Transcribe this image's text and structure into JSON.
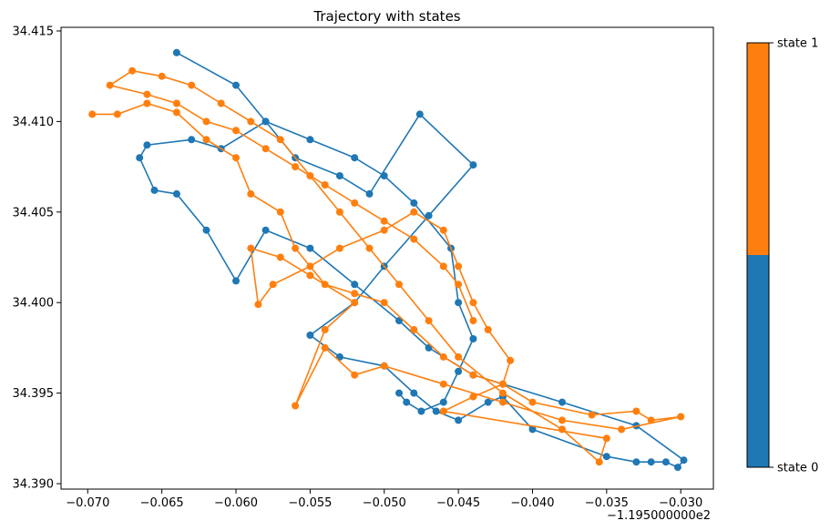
{
  "chart_data": {
    "type": "line",
    "title": "Trajectory with states",
    "xlabel": "",
    "ylabel": "",
    "x_offset_label": "−1.195000000e2",
    "xlim": [
      -0.0718,
      -0.0278
    ],
    "ylim": [
      34.3897,
      34.4152
    ],
    "x_ticks": [
      -0.07,
      -0.065,
      -0.06,
      -0.055,
      -0.05,
      -0.045,
      -0.04,
      -0.035,
      -0.03
    ],
    "x_tick_labels": [
      "−0.070",
      "−0.065",
      "−0.060",
      "−0.055",
      "−0.050",
      "−0.045",
      "−0.040",
      "−0.035",
      "−0.030"
    ],
    "y_ticks": [
      34.39,
      34.395,
      34.4,
      34.405,
      34.41,
      34.415
    ],
    "y_tick_labels": [
      "34.390",
      "34.395",
      "34.400",
      "34.405",
      "34.410",
      "34.415"
    ],
    "grid": false,
    "colorbar": {
      "labels": [
        "state 0",
        "state 1"
      ],
      "colors": [
        "#1f77b4",
        "#ff7f0e"
      ]
    },
    "series": [
      {
        "name": "state 0",
        "color": "#1f77b4",
        "points": [
          [
            -0.064,
            34.4138
          ],
          [
            -0.06,
            34.412
          ],
          [
            -0.058,
            34.41
          ],
          [
            -0.056,
            34.408
          ],
          [
            -0.053,
            34.407
          ],
          [
            -0.051,
            34.406
          ],
          [
            -0.0476,
            34.4104
          ],
          [
            -0.044,
            34.4076
          ],
          [
            -0.047,
            34.4048
          ],
          [
            -0.05,
            34.402
          ],
          [
            -0.052,
            34.4
          ],
          [
            -0.055,
            34.3982
          ],
          [
            -0.053,
            34.397
          ],
          [
            -0.05,
            34.3965
          ],
          [
            -0.048,
            34.395
          ],
          [
            -0.0465,
            34.394
          ],
          [
            -0.045,
            34.3935
          ],
          [
            -0.043,
            34.3945
          ],
          [
            -0.042,
            34.3948
          ],
          [
            -0.04,
            34.393
          ],
          [
            -0.035,
            34.3915
          ],
          [
            -0.033,
            34.3912
          ],
          [
            -0.032,
            34.3912
          ],
          [
            -0.031,
            34.3912
          ],
          [
            -0.0302,
            34.3909
          ],
          [
            -0.0298,
            34.3913
          ],
          [
            -0.033,
            34.3932
          ],
          [
            -0.038,
            34.3945
          ],
          [
            -0.044,
            34.396
          ],
          [
            -0.047,
            34.3975
          ],
          [
            -0.049,
            34.399
          ],
          [
            -0.052,
            34.401
          ],
          [
            -0.055,
            34.403
          ],
          [
            -0.058,
            34.404
          ],
          [
            -0.06,
            34.4012
          ],
          [
            -0.062,
            34.404
          ],
          [
            -0.064,
            34.406
          ],
          [
            -0.0655,
            34.4062
          ],
          [
            -0.0665,
            34.408
          ],
          [
            -0.066,
            34.4087
          ],
          [
            -0.063,
            34.409
          ],
          [
            -0.061,
            34.4085
          ],
          [
            -0.058,
            34.41
          ],
          [
            -0.055,
            34.409
          ],
          [
            -0.052,
            34.408
          ],
          [
            -0.05,
            34.407
          ],
          [
            -0.048,
            34.4055
          ],
          [
            -0.0455,
            34.403
          ],
          [
            -0.045,
            34.4
          ],
          [
            -0.044,
            34.398
          ],
          [
            -0.045,
            34.3962
          ],
          [
            -0.046,
            34.3945
          ],
          [
            -0.0475,
            34.394
          ],
          [
            -0.0485,
            34.3945
          ],
          [
            -0.049,
            34.395
          ]
        ]
      },
      {
        "name": "state 1",
        "color": "#ff7f0e",
        "points": [
          [
            -0.0697,
            34.4104
          ],
          [
            -0.068,
            34.4104
          ],
          [
            -0.066,
            34.411
          ],
          [
            -0.064,
            34.4105
          ],
          [
            -0.062,
            34.409
          ],
          [
            -0.06,
            34.408
          ],
          [
            -0.059,
            34.406
          ],
          [
            -0.057,
            34.405
          ],
          [
            -0.056,
            34.403
          ],
          [
            -0.054,
            34.401
          ],
          [
            -0.052,
            34.4005
          ],
          [
            -0.05,
            34.4
          ],
          [
            -0.048,
            34.3985
          ],
          [
            -0.046,
            34.397
          ],
          [
            -0.044,
            34.396
          ],
          [
            -0.042,
            34.3955
          ],
          [
            -0.04,
            34.3945
          ],
          [
            -0.036,
            34.3938
          ],
          [
            -0.033,
            34.394
          ],
          [
            -0.032,
            34.3935
          ],
          [
            -0.03,
            34.3937
          ],
          [
            -0.034,
            34.393
          ],
          [
            -0.038,
            34.3935
          ],
          [
            -0.042,
            34.3945
          ],
          [
            -0.046,
            34.3955
          ],
          [
            -0.05,
            34.3965
          ],
          [
            -0.052,
            34.396
          ],
          [
            -0.054,
            34.3975
          ],
          [
            -0.056,
            34.3943
          ],
          [
            -0.054,
            34.3985
          ],
          [
            -0.052,
            34.4
          ],
          [
            -0.055,
            34.4015
          ],
          [
            -0.057,
            34.4025
          ],
          [
            -0.059,
            34.403
          ],
          [
            -0.0585,
            34.3999
          ],
          [
            -0.0575,
            34.401
          ],
          [
            -0.055,
            34.402
          ],
          [
            -0.053,
            34.403
          ],
          [
            -0.05,
            34.404
          ],
          [
            -0.048,
            34.405
          ],
          [
            -0.046,
            34.404
          ],
          [
            -0.045,
            34.402
          ],
          [
            -0.044,
            34.4
          ],
          [
            -0.043,
            34.3985
          ],
          [
            -0.0415,
            34.3968
          ],
          [
            -0.042,
            34.3955
          ],
          [
            -0.044,
            34.3948
          ],
          [
            -0.046,
            34.394
          ],
          [
            -0.035,
            34.3925
          ],
          [
            -0.0355,
            34.3912
          ],
          [
            -0.038,
            34.393
          ],
          [
            -0.042,
            34.395
          ],
          [
            -0.045,
            34.397
          ],
          [
            -0.047,
            34.399
          ],
          [
            -0.049,
            34.401
          ],
          [
            -0.051,
            34.403
          ],
          [
            -0.053,
            34.405
          ],
          [
            -0.055,
            34.407
          ],
          [
            -0.057,
            34.409
          ],
          [
            -0.059,
            34.41
          ],
          [
            -0.061,
            34.411
          ],
          [
            -0.063,
            34.412
          ],
          [
            -0.065,
            34.4125
          ],
          [
            -0.067,
            34.4128
          ],
          [
            -0.0685,
            34.412
          ],
          [
            -0.066,
            34.4115
          ],
          [
            -0.064,
            34.411
          ],
          [
            -0.062,
            34.41
          ],
          [
            -0.06,
            34.4095
          ],
          [
            -0.058,
            34.4085
          ],
          [
            -0.056,
            34.4075
          ],
          [
            -0.054,
            34.4065
          ],
          [
            -0.052,
            34.4055
          ],
          [
            -0.05,
            34.4045
          ],
          [
            -0.048,
            34.4035
          ],
          [
            -0.046,
            34.402
          ],
          [
            -0.045,
            34.401
          ],
          [
            -0.044,
            34.399
          ]
        ]
      }
    ]
  }
}
